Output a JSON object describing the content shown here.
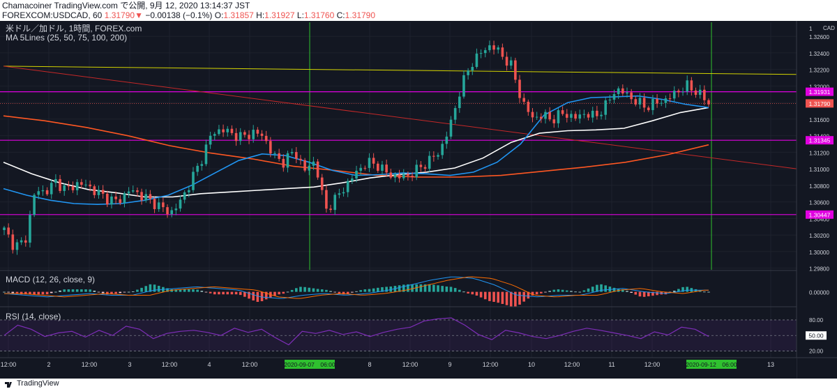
{
  "header": {
    "publish_line_prefix": "Chamacoiner TradingView.com で公開, ",
    "publish_date": "9月 12, 2020 13:14:37 JST",
    "symbol": "FOREXCOM:USDCAD, 60",
    "last": "1.31790",
    "change_arrow": "▼",
    "change": "−0.00138 (−0.1%)",
    "o_label": "O:",
    "o": "1.31857",
    "h_label": "H:",
    "h": "1.31927",
    "l_label": "L:",
    "l": "1.31760",
    "c_label": "C:",
    "c": "1.31790"
  },
  "legend": {
    "instrument": "米ドル／加ドル, 1時間, FOREX.com",
    "ma": "MA 5Lines (25, 50, 75, 100, 200)",
    "macd": "MACD (12, 26, close, 9)",
    "rsi": "RSI (14, close)"
  },
  "price_axis": {
    "currency": "CAD",
    "top_label": "1",
    "ticks": [
      "1.32600",
      "1.32400",
      "1.32200",
      "1.32000",
      "1.31800",
      "1.31600",
      "1.31400",
      "1.31200",
      "1.31000",
      "1.30800",
      "1.30600",
      "1.30400",
      "1.30200",
      "1.30000",
      "1.29800"
    ],
    "macd_tick": "0.00000",
    "rsi_ticks": [
      "80.00",
      "50.00",
      "20.00"
    ]
  },
  "time_axis": {
    "ticks": [
      "12:00",
      "2",
      "12:00",
      "3",
      "12:00",
      "4",
      "12:00",
      "8",
      "12:00",
      "9",
      "12:00",
      "10",
      "12:00",
      "11",
      "12:00",
      "13"
    ],
    "highlight_left": "2020-09-07　06:00",
    "highlight_right": "2020-09-12　06:00"
  },
  "badges": {
    "r1": "1.31931",
    "last": "1.31790",
    "r2": "1.31345",
    "s1": "1.30447"
  },
  "footer": {
    "brand": "TradingView"
  },
  "colors": {
    "background": "#131722",
    "up": "#26a69a",
    "down": "#ef5350",
    "ma_blue": "#2196f3",
    "ma_white": "#ffffff",
    "ma_orange": "#ff5722",
    "level_magenta": "#e000e0",
    "trend_yellow": "#d4d400",
    "trend_red": "#c62828",
    "vertical_green": "#2fc12f",
    "rsi_line": "#7e2eb8"
  },
  "chart_data": {
    "type": "candlestick",
    "symbol": "FOREXCOM:USDCAD",
    "interval": "60",
    "price_range": [
      1.2978,
      1.3277
    ],
    "horizontal_levels": [
      1.31931,
      1.31345,
      1.30447
    ],
    "trendlines": [
      {
        "name": "yellow",
        "from": [
          "Sep 1",
          1.3224
        ],
        "to": [
          "Sep 12",
          1.3214
        ]
      },
      {
        "name": "red",
        "from": [
          "Sep 1",
          1.3224
        ],
        "to": [
          "Sep 13",
          1.31
        ]
      }
    ],
    "vertical_markers": [
      "2020-09-07 06:00",
      "2020-09-12 06:00"
    ],
    "price_path": [
      1.3026,
      1.3006,
      1.3012,
      1.3074,
      1.3072,
      1.3085,
      1.3074,
      1.3082,
      1.308,
      1.3071,
      1.3064,
      1.306,
      1.3074,
      1.307,
      1.3062,
      1.3055,
      1.3046,
      1.306,
      1.3085,
      1.311,
      1.3142,
      1.3148,
      1.3142,
      1.3138,
      1.3144,
      1.314,
      1.3115,
      1.3108,
      1.3122,
      1.3098,
      1.311,
      1.305,
      1.3064,
      1.308,
      1.3096,
      1.3108,
      1.3105,
      1.3094,
      1.309,
      1.3092,
      1.31,
      1.311,
      1.312,
      1.315,
      1.3195,
      1.3226,
      1.324,
      1.325,
      1.3238,
      1.3223,
      1.318,
      1.3162,
      1.3164,
      1.316,
      1.3168,
      1.3161,
      1.3167,
      1.3163,
      1.3175,
      1.3196,
      1.3191,
      1.3181,
      1.3175,
      1.318,
      1.3184,
      1.3194,
      1.32,
      1.3192,
      1.3179
    ],
    "ma_blue": [
      1.3076,
      1.3068,
      1.3062,
      1.3058,
      1.3057,
      1.3058,
      1.3062,
      1.3068,
      1.308,
      1.3095,
      1.311,
      1.3118,
      1.3116,
      1.3108,
      1.3098,
      1.3092,
      1.3093,
      1.3095,
      1.3094,
      1.3092,
      1.3096,
      1.3108,
      1.313,
      1.3165,
      1.318,
      1.3186,
      1.3187,
      1.3188,
      1.3184,
      1.3178,
      1.3174
    ],
    "ma_white": [
      1.3108,
      1.3094,
      1.3083,
      1.3075,
      1.3071,
      1.3066,
      1.3066,
      1.307,
      1.3072,
      1.3074,
      1.3076,
      1.3078,
      1.3083,
      1.3089,
      1.3093,
      1.3096,
      1.3101,
      1.3113,
      1.3132,
      1.3143,
      1.3146,
      1.3147,
      1.3149,
      1.3158,
      1.3168,
      1.3174
    ],
    "ma_orange": [
      1.3164,
      1.3158,
      1.315,
      1.314,
      1.3128,
      1.3119,
      1.3112,
      1.3103,
      1.3098,
      1.3092,
      1.309,
      1.309,
      1.3092,
      1.3097,
      1.3102,
      1.3108,
      1.3117,
      1.3129
    ],
    "macd_range": [
      -0.0008,
      0.0011
    ],
    "macd": [
      -0.0001,
      -0.0002,
      -0.0003,
      -0.0002,
      -0.0001,
      -0.0002,
      -0.0002,
      0.0001,
      0.0002,
      0.0003,
      0.0002,
      0.0001,
      -0.0003,
      -0.0004,
      -0.0002,
      -0.0001,
      -0.0002,
      -0.0001,
      0.0001,
      0.0004,
      0.0007,
      0.0009,
      0.0008,
      0.0004,
      -0.0002,
      -0.0003,
      -0.0002,
      -0.0002,
      0.0001,
      0.0002,
      0.0,
      -0.0001,
      0.0001,
      0.0001
    ],
    "rsi_range": [
      20,
      80
    ],
    "rsi": [
      50,
      70,
      62,
      48,
      55,
      58,
      47,
      60,
      50,
      68,
      62,
      44,
      54,
      58,
      60,
      56,
      50,
      64,
      56,
      62,
      46,
      32,
      58,
      54,
      60,
      52,
      57,
      48,
      56,
      62,
      66,
      78,
      82,
      84,
      70,
      52,
      42,
      60,
      55,
      48,
      44,
      50,
      58,
      64,
      60,
      55,
      50,
      44,
      57,
      51,
      66,
      62,
      48
    ]
  }
}
